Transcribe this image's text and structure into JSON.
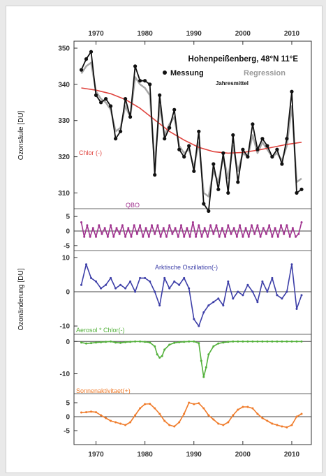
{
  "chart_data": {
    "type": "line",
    "title": "Hohenpeißenberg, 48°N 11°E",
    "x_ticks": [
      1970,
      1980,
      1990,
      2000,
      2010
    ],
    "xlim": [
      1965.5,
      2014
    ],
    "colors": {
      "measurement": "#111111",
      "regression": "#a8a8a8",
      "chlor": "#e0443f",
      "qbo": "#a0338f",
      "ao": "#3d3fa8",
      "aerosol": "#52b03a",
      "solar": "#f07c2b"
    },
    "panels": [
      {
        "id": "total",
        "ylabel": "Ozonsäule [DU]",
        "ylim": [
          307,
          350
        ],
        "yticks": [
          310,
          320,
          330,
          340,
          350
        ],
        "legend": {
          "measurement_label": "Messung",
          "regression_label": "Regression",
          "annual_label": "Jahresmittel"
        },
        "series": [
          {
            "name": "Messung",
            "x": [
              1967,
              1968,
              1969,
              1970,
              1971,
              1972,
              1973,
              1974,
              1975,
              1976,
              1977,
              1978,
              1979,
              1980,
              1981,
              1982,
              1983,
              1984,
              1985,
              1986,
              1987,
              1988,
              1989,
              1990,
              1991,
              1992,
              1993,
              1994,
              1995,
              1996,
              1997,
              1998,
              1999,
              2000,
              2001,
              2002,
              2003,
              2004,
              2005,
              2006,
              2007,
              2008,
              2009,
              2010,
              2011,
              2012
            ],
            "values": [
              344,
              347,
              349,
              337,
              335,
              336,
              334,
              325,
              327,
              336,
              331,
              345,
              341,
              341,
              340,
              315,
              337,
              325,
              328,
              333,
              322,
              320,
              323,
              316,
              327,
              307,
              305,
              318,
              311,
              321,
              310,
              326,
              313,
              322,
              320,
              329,
              322,
              325,
              323,
              320,
              322,
              318,
              325,
              338,
              310,
              311
            ]
          },
          {
            "name": "Regression",
            "x": [
              1967,
              1968,
              1969,
              1970,
              1971,
              1972,
              1973,
              1974,
              1975,
              1976,
              1977,
              1978,
              1979,
              1980,
              1981,
              1982,
              1983,
              1984,
              1985,
              1986,
              1987,
              1988,
              1989,
              1990,
              1991,
              1992,
              1993,
              1994,
              1995,
              1996,
              1997,
              1998,
              1999,
              2000,
              2001,
              2002,
              2003,
              2004,
              2005,
              2006,
              2007,
              2008,
              2009,
              2010,
              2011,
              2012
            ],
            "values": [
              343,
              345,
              346,
              338,
              336,
              335,
              333,
              327,
              328,
              334,
              331,
              342,
              340,
              339,
              337,
              318,
              334,
              326,
              329,
              331,
              323,
              321,
              322,
              317,
              324,
              310,
              309,
              316,
              313,
              320,
              314,
              323,
              316,
              321,
              320,
              326,
              321,
              324,
              322,
              320,
              321,
              319,
              323,
              334,
              313,
              314
            ]
          },
          {
            "name": "Chlor (-)",
            "x": [
              1967,
              1970,
              1973,
              1976,
              1979,
              1982,
              1985,
              1988,
              1991,
              1994,
              1997,
              2000,
              2003,
              2006,
              2009,
              2012
            ],
            "values": [
              339,
              338.4,
              337.4,
              335.8,
              333.4,
              330.2,
              327,
              324.6,
              322.6,
              321.4,
              321,
              321.2,
              321.8,
              322.6,
              323.4,
              324
            ]
          }
        ]
      },
      {
        "id": "qbo",
        "label": "QBO",
        "ylim": [
          -6,
          6
        ],
        "yticks": [
          5,
          0,
          -5
        ],
        "series": [
          {
            "name": "QBO",
            "x": [
              1967,
              1967.6,
              1968.2,
              1968.8,
              1969.4,
              1970,
              1970.6,
              1971.2,
              1971.8,
              1972.4,
              1973,
              1973.6,
              1974.2,
              1974.8,
              1975.4,
              1976,
              1976.6,
              1977.2,
              1977.8,
              1978.4,
              1979,
              1979.6,
              1980.2,
              1980.8,
              1981.4,
              1982,
              1982.6,
              1983.2,
              1983.8,
              1984.4,
              1985,
              1985.6,
              1986.2,
              1986.8,
              1987.4,
              1988,
              1988.6,
              1989.2,
              1989.8,
              1990.4,
              1991,
              1991.6,
              1992.2,
              1992.8,
              1993.4,
              1994,
              1994.6,
              1995.2,
              1995.8,
              1996.4,
              1997,
              1997.6,
              1998.2,
              1998.8,
              1999.4,
              2000,
              2000.6,
              2001.2,
              2001.8,
              2002.4,
              2003,
              2003.6,
              2004.2,
              2004.8,
              2005.4,
              2006,
              2006.6,
              2007.2,
              2007.8,
              2008.4,
              2009,
              2009.6,
              2010.2,
              2010.8,
              2011.4,
              2012
            ],
            "values": [
              3,
              -2,
              2,
              -2,
              1,
              -2,
              2,
              -1,
              1,
              -2,
              2,
              -2,
              1,
              -1,
              2,
              -2,
              1,
              -2,
              2,
              -1,
              2,
              -2,
              1,
              -2,
              2,
              -1,
              2,
              -2,
              1,
              -2,
              2,
              -1,
              1,
              -2,
              2,
              -2,
              1,
              -2,
              3,
              -2,
              2,
              -2,
              1,
              -2,
              2,
              -1,
              2,
              -2,
              1,
              -2,
              2,
              -1,
              1,
              -2,
              2,
              -2,
              1,
              -2,
              2,
              -1,
              2,
              -2,
              1,
              -1,
              2,
              -2,
              1,
              -2,
              2,
              -1,
              2,
              -2,
              1,
              -2,
              -1,
              3
            ]
          }
        ]
      },
      {
        "id": "ao",
        "label": "Arktische Oszillation(-)",
        "ylim": [
          -11,
          11
        ],
        "yticks": [
          10,
          0,
          -10
        ],
        "series": [
          {
            "name": "Arktische Oszillation(-)",
            "x": [
              1967,
              1968,
              1969,
              1970,
              1971,
              1972,
              1973,
              1974,
              1975,
              1976,
              1977,
              1978,
              1979,
              1980,
              1981,
              1982,
              1983,
              1984,
              1985,
              1986,
              1987,
              1988,
              1989,
              1990,
              1991,
              1992,
              1993,
              1994,
              1995,
              1996,
              1997,
              1998,
              1999,
              2000,
              2001,
              2002,
              2003,
              2004,
              2005,
              2006,
              2007,
              2008,
              2009,
              2010,
              2011,
              2012
            ],
            "values": [
              2,
              8,
              4,
              3,
              1,
              2,
              4,
              1,
              2,
              1,
              3,
              0,
              4,
              4,
              3,
              0,
              -4,
              4,
              1,
              3,
              2,
              4,
              1,
              -8,
              -10,
              -6,
              -4,
              -3,
              -2,
              -4,
              3,
              -2,
              0,
              -1,
              2,
              0,
              -3,
              3,
              0,
              4,
              -1,
              -2,
              0,
              8,
              -5,
              -1
            ]
          }
        ]
      },
      {
        "id": "aerosol",
        "label": "Aerosol * Chlor(-)",
        "ylim": [
          -14,
          0.5
        ],
        "yticks": [
          0,
          -10
        ],
        "series": [
          {
            "name": "Aerosol * Chlor(-)",
            "x": [
              1967,
              1968,
              1969,
              1970,
              1971,
              1972,
              1973,
              1974,
              1975,
              1976,
              1977,
              1978,
              1979,
              1980,
              1981,
              1982,
              1982.5,
              1983,
              1983.5,
              1984,
              1985,
              1986,
              1987,
              1988,
              1989,
              1990,
              1991,
              1991.5,
              1992,
              1992.5,
              1993,
              1994,
              1995,
              1996,
              1997,
              1998,
              1999,
              2000,
              2001,
              2002,
              2003,
              2004,
              2005,
              2006,
              2007,
              2008,
              2009,
              2010,
              2011,
              2012
            ],
            "values": [
              -0.3,
              -0.6,
              -0.5,
              -0.3,
              -0.2,
              -0.1,
              0,
              -0.3,
              -0.4,
              -0.2,
              -0.1,
              0,
              0,
              -0.1,
              -0.3,
              -1.5,
              -4,
              -5,
              -4.5,
              -2.5,
              -1,
              -0.4,
              -0.2,
              -0.1,
              0,
              0,
              -0.5,
              -6,
              -11,
              -8,
              -4,
              -1.5,
              -0.6,
              -0.3,
              -0.1,
              0,
              0,
              0,
              0,
              0,
              0,
              0,
              0,
              0,
              0,
              0,
              0,
              0,
              0,
              0
            ]
          }
        ]
      },
      {
        "id": "solar",
        "label": "Sonnenaktivitaet(+)",
        "ylim": [
          -6.5,
          6.5
        ],
        "yticks": [
          5,
          0,
          -5
        ],
        "series": [
          {
            "name": "Sonnenaktivitaet(+)",
            "x": [
              1967,
              1968,
              1969,
              1970,
              1971,
              1972,
              1973,
              1974,
              1975,
              1976,
              1977,
              1978,
              1979,
              1980,
              1981,
              1982,
              1983,
              1984,
              1985,
              1986,
              1987,
              1988,
              1989,
              1990,
              1991,
              1992,
              1993,
              1994,
              1995,
              1996,
              1997,
              1998,
              1999,
              2000,
              2001,
              2002,
              2003,
              2004,
              2005,
              2006,
              2007,
              2008,
              2009,
              2010,
              2011,
              2012
            ],
            "values": [
              1.5,
              1.6,
              1.8,
              1.6,
              0.5,
              -0.5,
              -1.5,
              -2,
              -2.5,
              -3,
              -2,
              0.5,
              3,
              4.5,
              4.6,
              3,
              1,
              -1.5,
              -3,
              -3.5,
              -2,
              1,
              5,
              4.5,
              4.8,
              3,
              0.5,
              -1,
              -2.5,
              -3,
              -2,
              0.5,
              2.5,
              3.5,
              3.5,
              3,
              1,
              -0.5,
              -1.5,
              -2.5,
              -3,
              -3.5,
              -3.8,
              -3,
              0,
              1
            ]
          }
        ]
      }
    ],
    "ylabel_lower": "Ozonänderung [DU]"
  }
}
